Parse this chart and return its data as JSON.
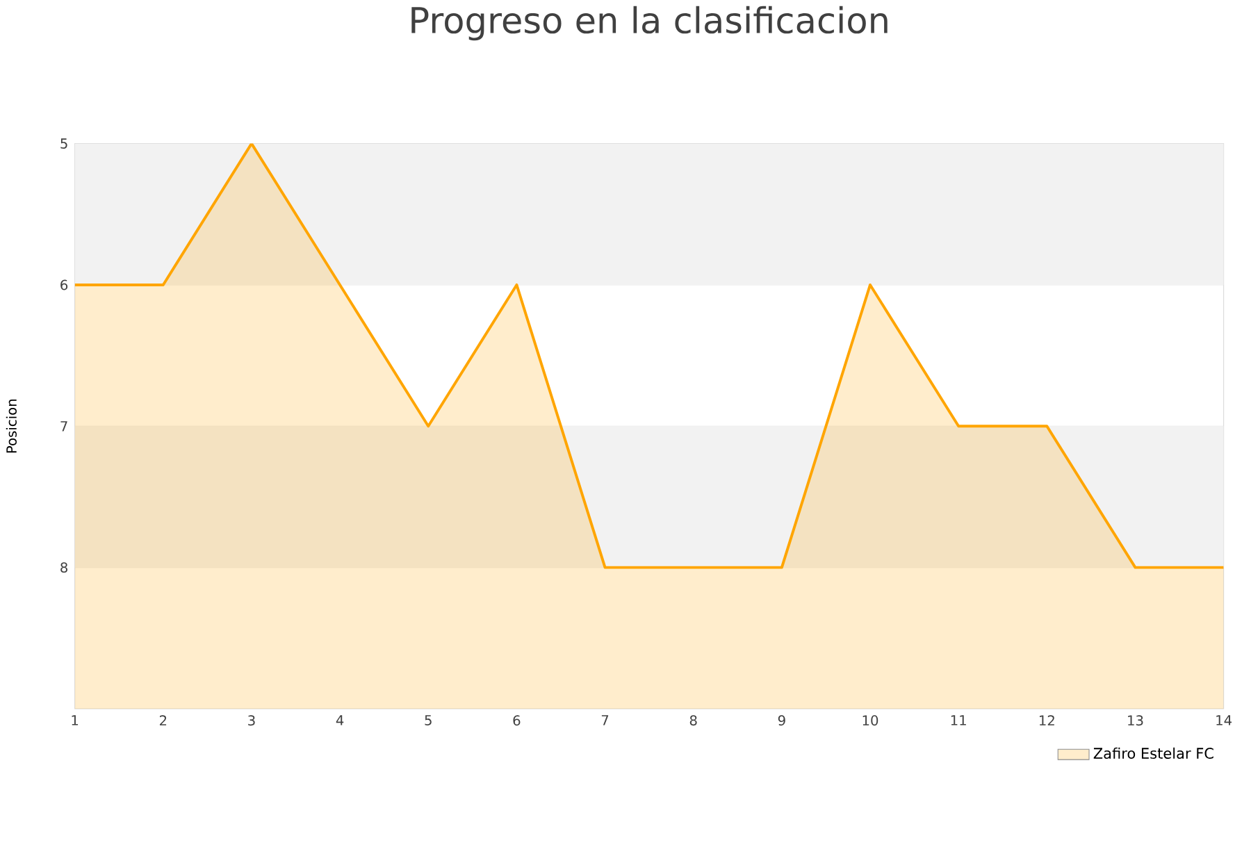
{
  "chart_data": {
    "type": "area",
    "title": "Progreso en la clasificacion",
    "ylabel": "Posicion",
    "x": [
      1,
      2,
      3,
      4,
      5,
      6,
      7,
      8,
      9,
      10,
      11,
      12,
      13,
      14
    ],
    "series": [
      {
        "name": "Zafiro Estelar FC",
        "color": "#ffa500",
        "values": [
          6,
          6,
          5,
          6,
          7,
          6,
          8,
          8,
          8,
          6,
          7,
          7,
          8,
          8
        ]
      }
    ],
    "xlim": [
      1,
      14
    ],
    "xticks": [
      1,
      2,
      3,
      4,
      5,
      6,
      7,
      8,
      9,
      10,
      11,
      12,
      13,
      14
    ],
    "ylim": [
      9,
      5
    ],
    "yticks": [
      5,
      6,
      7,
      8
    ],
    "bands": [
      {
        "axis": "y",
        "from": 5,
        "to": 6,
        "color": "#f2f2f2"
      },
      {
        "axis": "y",
        "from": 7,
        "to": 8,
        "color": "#f2f2f2"
      }
    ],
    "grid": "y",
    "legend": "bottom right",
    "marker": "none",
    "line_style": "solid"
  }
}
